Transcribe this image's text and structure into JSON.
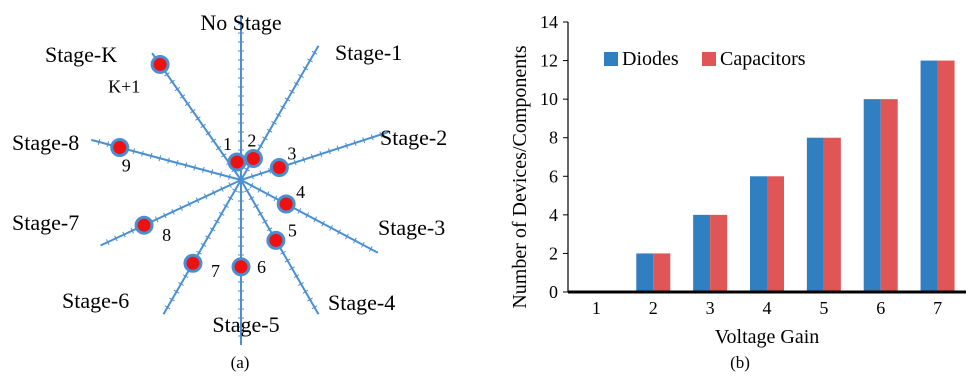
{
  "colors": {
    "spoke": "#4a8fd0",
    "node_fill": "#ee1111",
    "node_stroke": "#4a8fd0",
    "diodes": "#2f7fc1",
    "capacitors": "#e05555"
  },
  "diagram": {
    "caption": "(a)",
    "spokes": [
      {
        "label": "No Stage",
        "angle_deg": 0,
        "node": null
      },
      {
        "label": "Stage-1",
        "angle_deg": 30,
        "node": {
          "number": "2",
          "radius": 0.16
        }
      },
      {
        "label": "Stage-2",
        "angle_deg": 72,
        "node": {
          "number": "3",
          "radius": 0.26
        }
      },
      {
        "label": "Stage-3",
        "angle_deg": 118,
        "node": {
          "number": "4",
          "radius": 0.33
        }
      },
      {
        "label": "Stage-4",
        "angle_deg": 150,
        "node": {
          "number": "5",
          "radius": 0.45
        }
      },
      {
        "label": "Stage-5",
        "angle_deg": 180,
        "node": {
          "number": "6",
          "radius": 0.56
        }
      },
      {
        "label": "Stage-6",
        "angle_deg": 210,
        "node": {
          "number": "7",
          "radius": 0.62
        }
      },
      {
        "label": "Stage-7",
        "angle_deg": 245,
        "node": {
          "number": "8",
          "radius": 0.69
        }
      },
      {
        "label": "Stage-8",
        "angle_deg": 285,
        "node": {
          "number": "9",
          "radius": 0.81
        }
      },
      {
        "label": "Stage-K",
        "angle_deg": 325,
        "node": {
          "number": "K+1",
          "radius": 0.91
        }
      }
    ],
    "center_node": {
      "number": "1"
    }
  },
  "chart_data": {
    "type": "bar",
    "caption": "(b)",
    "xlabel": "Voltage Gain",
    "ylabel": "Number of Devices/Components",
    "categories": [
      "1",
      "2",
      "3",
      "4",
      "5",
      "6",
      "7"
    ],
    "series": [
      {
        "name": "Diodes",
        "values": [
          0,
          2,
          4,
          6,
          8,
          10,
          12
        ]
      },
      {
        "name": "Capacitors",
        "values": [
          0,
          2,
          4,
          6,
          8,
          10,
          12
        ]
      }
    ],
    "ylim": [
      0,
      14
    ],
    "yticks": [
      "0",
      "2",
      "4",
      "6",
      "8",
      "10",
      "12",
      "14"
    ],
    "legend": "top-left",
    "grid": false
  }
}
